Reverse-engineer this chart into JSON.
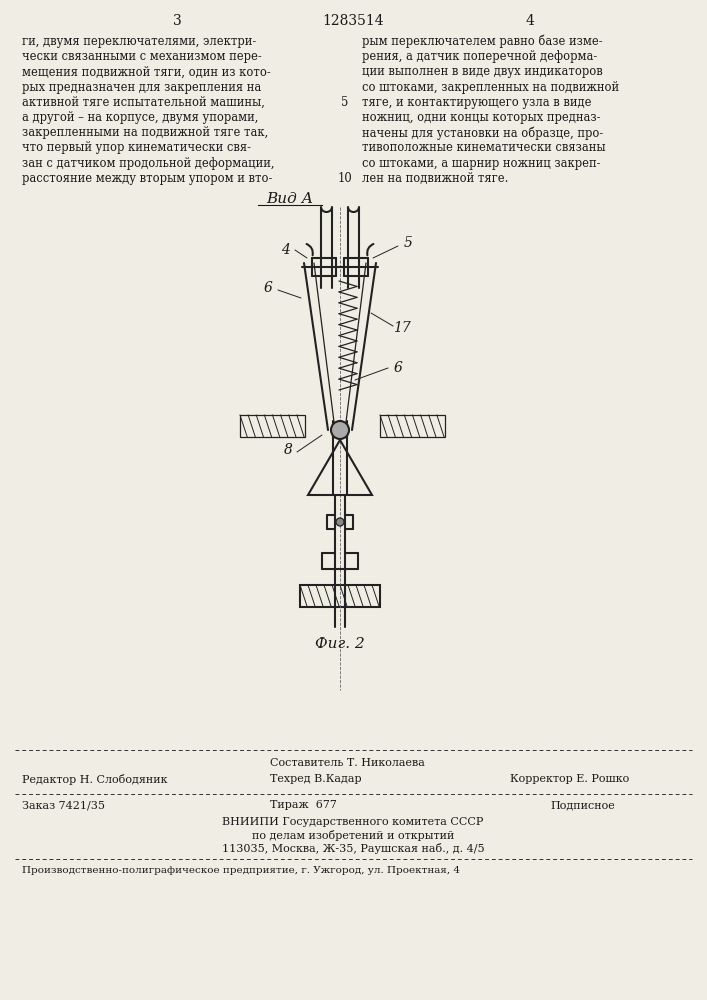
{
  "bg_color": "#f0ede4",
  "page_number_left": "3",
  "page_number_center": "1283514",
  "page_number_right": "4",
  "text_left": "ги, двумя переключателями, электри-\nчески связанными с механизмом пере-\nмещения подвижной тяги, один из кото-\nрых предназначен для закрепления на\nактивной тяге испытательной машины,\nа другой – на корпусе, двумя упорами,\nзакрепленными на подвижной тяге так,\nчто первый упор кинематически свя-\nзан с датчиком продольной деформации,\nрасстояние между вторым упором и вто-",
  "text_right": "рым переключателем равно базе изме-\nрения, а датчик поперечной деформа-\nции выполнен в виде двух индикаторов\nсо штоками, закрепленных на подвижной\nтяге, и контактирующего узла в виде\nножниц, одни концы которых предназ-\nначены для установки на образце, про-\nтивоположные кинематически связаны\nсо штоками, а шарнир ножниц закреп-\nлен на подвижной тяге.",
  "line_num_5": "5",
  "line_num_10": "10",
  "view_label": "Вид А",
  "fig_label": "Фиг. 2",
  "label_4": "4",
  "label_5": "5",
  "label_6_left": "6",
  "label_6_right": "6",
  "label_8": "8",
  "label_17": "17",
  "editor_label": "Редактор Н. Слободяник",
  "composer_label": "Составитель Т. Николаева",
  "techred_label": "Техред В.Кадар",
  "corrector_label": "Корректор Е. Рошко",
  "order_label": "Заказ 7421/35",
  "tiraz_label": "Тираж  677",
  "podpisnoe_label": "Подписное",
  "vniipи_line1": "ВНИИПИ Государственного комитета СССР",
  "vniipи_line2": "по делам изобретений и открытий",
  "vniipи_line3": "113035, Москва, Ж-35, Раушская наб., д. 4/5",
  "production_line": "Производственно-полиграфическое предприятие, г. Ужгород, ул. Проектная, 4",
  "text_color": "#1a1a1a",
  "draw_color": "#222222",
  "line_color": "#555555"
}
